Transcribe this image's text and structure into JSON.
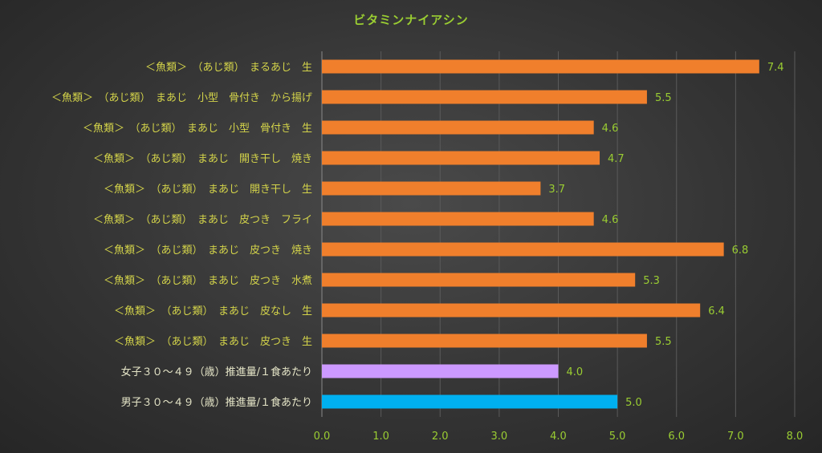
{
  "chart_data": {
    "type": "bar",
    "orientation": "horizontal",
    "title": "ビタミンナイアシン",
    "xlabel": "",
    "ylabel": "",
    "xlim": [
      0,
      8
    ],
    "ticks": [
      "0.0",
      "1.0",
      "2.0",
      "3.0",
      "4.0",
      "5.0",
      "6.0",
      "7.0",
      "8.0"
    ],
    "grid": true,
    "legend": "none",
    "categories": [
      "＜魚類＞　（あじ類）　まるあじ　生",
      "＜魚類＞　（あじ類）　まあじ　小型　骨付き　から揚げ",
      "＜魚類＞　（あじ類）　まあじ　小型　骨付き　生",
      "＜魚類＞　（あじ類）　まあじ　開き干し　焼き",
      "＜魚類＞　（あじ類）　まあじ　開き干し　生",
      "＜魚類＞　（あじ類）　まあじ　皮つき　フライ",
      "＜魚類＞　（あじ類）　まあじ　皮つき　焼き",
      "＜魚類＞　（あじ類）　まあじ　皮つき　水煮",
      "＜魚類＞　（あじ類）　まあじ　皮なし　生",
      "＜魚類＞　（あじ類）　まあじ　皮つき　生",
      "女子３０～４９（歳）推進量/１食あたり",
      "男子３０～４９（歳）推進量/１食あたり"
    ],
    "values": [
      7.4,
      5.5,
      4.6,
      4.7,
      3.7,
      4.6,
      6.8,
      5.3,
      6.4,
      5.5,
      4.0,
      5.0
    ],
    "value_labels": [
      "7.4",
      "5.5",
      "4.6",
      "4.7",
      "3.7",
      "4.6",
      "6.8",
      "5.3",
      "6.4",
      "5.5",
      "4.0",
      "5.0"
    ],
    "bar_colors": [
      "#f07f2c",
      "#f07f2c",
      "#f07f2c",
      "#f07f2c",
      "#f07f2c",
      "#f07f2c",
      "#f07f2c",
      "#f07f2c",
      "#f07f2c",
      "#f07f2c",
      "#cc99ff",
      "#00b0f0"
    ],
    "reference_rows": [
      10,
      11
    ]
  }
}
